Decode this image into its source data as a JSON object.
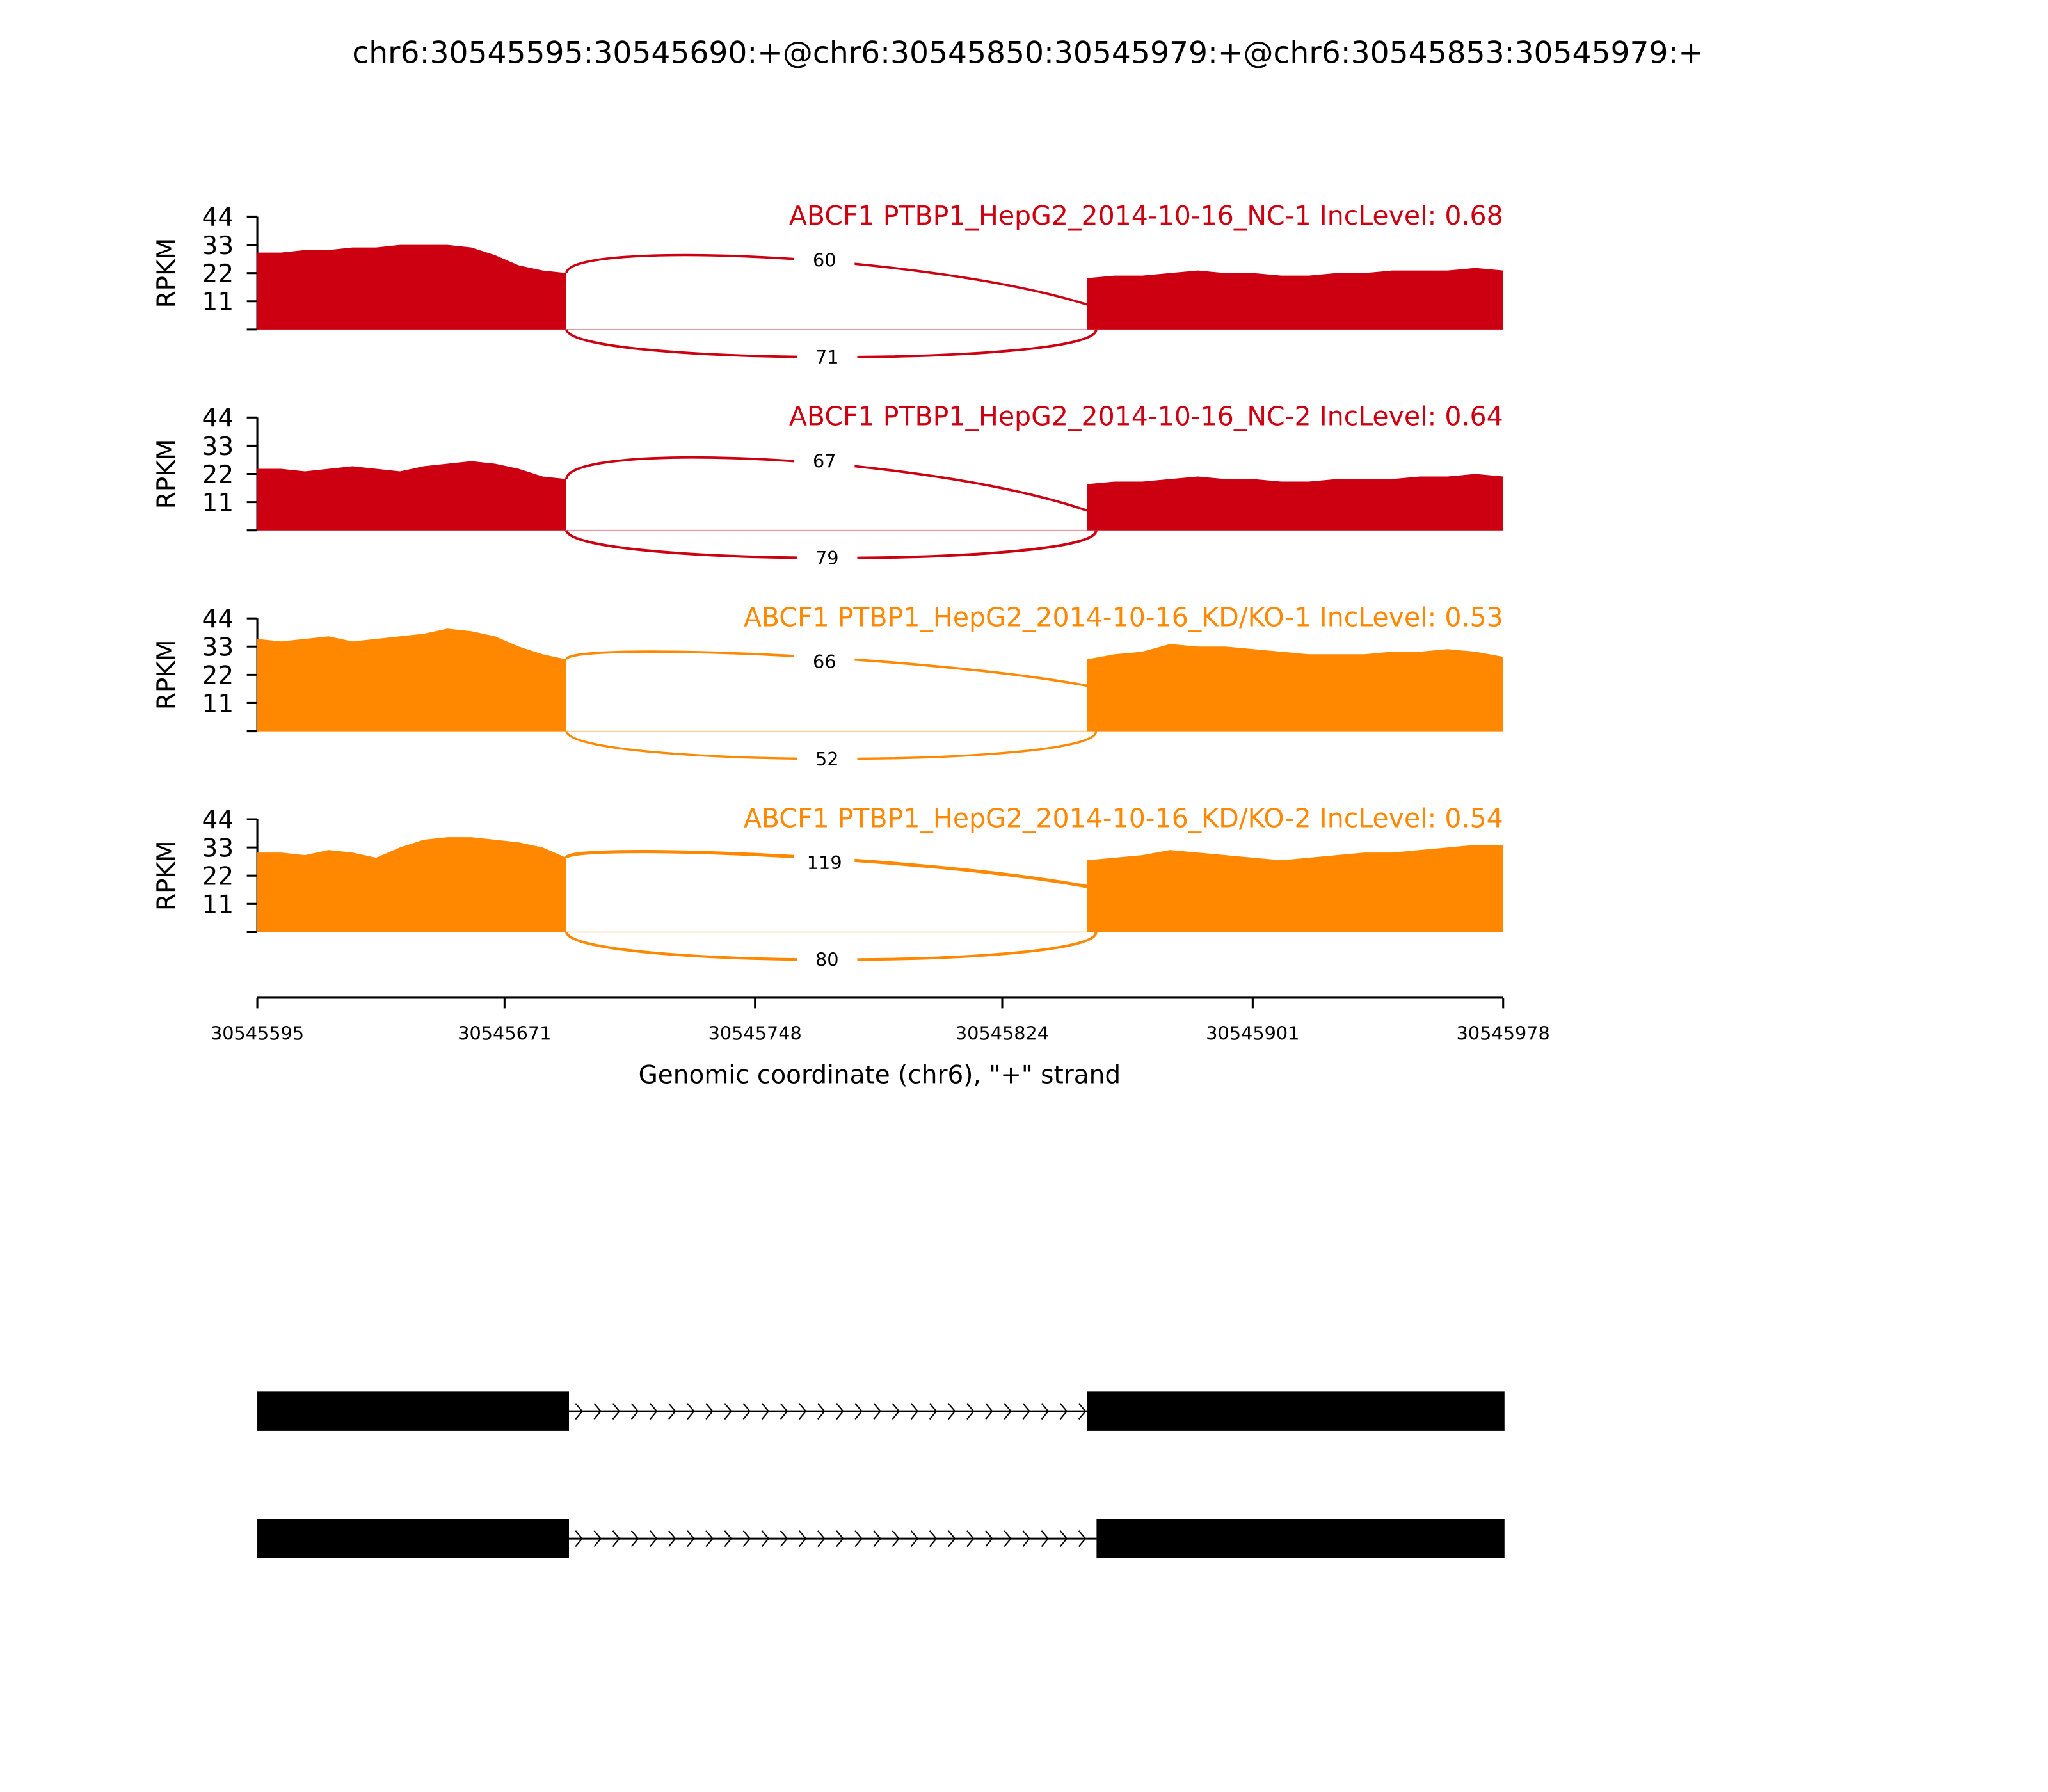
{
  "chart_data": {
    "type": "area",
    "title": "chr6:30545595:30545690:+@chr6:30545850:30545979:+@chr6:30545853:30545979:+",
    "xlabel": "Genomic coordinate (chr6), \"+\" strand",
    "ylabel": "RPKM",
    "xlim": [
      30545595,
      30545978
    ],
    "xticks": [
      "30545595",
      "30545671",
      "30545748",
      "30545824",
      "30545901",
      "30545978"
    ],
    "ylim": [
      0,
      44
    ],
    "yticks": [
      "11",
      "22",
      "33",
      "44"
    ],
    "exon1": [
      30545595,
      30545690
    ],
    "exon2": [
      30545850,
      30545978
    ],
    "tracks": [
      {
        "label": "ABCF1 PTBP1_HepG2_2014-10-16_NC-1 IncLevel: 0.68",
        "color": "#cc0011",
        "exon1_cov": [
          30,
          30,
          31,
          31,
          32,
          32,
          33,
          33,
          33,
          32,
          29,
          25,
          23,
          22
        ],
        "exon2_cov": [
          20,
          21,
          21,
          22,
          23,
          22,
          22,
          21,
          21,
          22,
          22,
          23,
          23,
          23,
          24,
          23
        ],
        "junction_above": "60",
        "junction_below": "71"
      },
      {
        "label": "ABCF1 PTBP1_HepG2_2014-10-16_NC-2 IncLevel: 0.64",
        "color": "#cc0011",
        "exon1_cov": [
          24,
          24,
          23,
          24,
          25,
          24,
          23,
          25,
          26,
          27,
          26,
          24,
          21,
          20
        ],
        "exon2_cov": [
          18,
          19,
          19,
          20,
          21,
          20,
          20,
          19,
          19,
          20,
          20,
          20,
          21,
          21,
          22,
          21
        ],
        "junction_above": "67",
        "junction_below": "79"
      },
      {
        "label": "ABCF1 PTBP1_HepG2_2014-10-16_KD/KO-1 IncLevel: 0.53",
        "color": "#ff8800",
        "exon1_cov": [
          36,
          35,
          36,
          37,
          35,
          36,
          37,
          38,
          40,
          39,
          37,
          33,
          30,
          28
        ],
        "exon2_cov": [
          28,
          30,
          31,
          34,
          33,
          33,
          32,
          31,
          30,
          30,
          30,
          31,
          31,
          32,
          31,
          29
        ],
        "junction_above": "66",
        "junction_below": "52"
      },
      {
        "label": "ABCF1 PTBP1_HepG2_2014-10-16_KD/KO-2 IncLevel: 0.54",
        "color": "#ff8800",
        "exon1_cov": [
          31,
          31,
          30,
          32,
          31,
          29,
          33,
          36,
          37,
          37,
          36,
          35,
          33,
          29
        ],
        "exon2_cov": [
          28,
          29,
          30,
          32,
          31,
          30,
          29,
          28,
          29,
          30,
          31,
          31,
          32,
          33,
          34,
          34
        ],
        "junction_above": "119",
        "junction_below": "80"
      }
    ],
    "gene_models": [
      {
        "exons": [
          [
            30545595,
            30545690
          ],
          [
            30545850,
            30545978
          ]
        ]
      },
      {
        "exons": [
          [
            30545595,
            30545690
          ],
          [
            30545853,
            30545978
          ]
        ]
      }
    ]
  }
}
